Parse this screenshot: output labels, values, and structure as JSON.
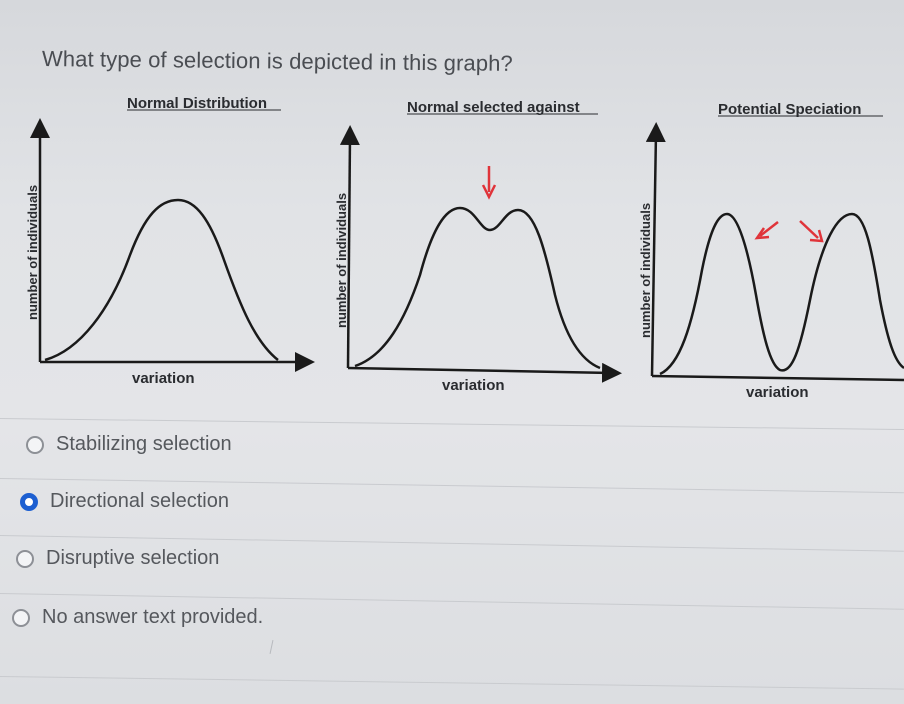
{
  "question": {
    "text": "What type of selection is depicted in this graph?"
  },
  "figure": {
    "panels": [
      {
        "title": "Normal Distribution",
        "ylabel": "number of individuals",
        "xlabel": "variation"
      },
      {
        "title": "Normal selected against",
        "ylabel": "number of individuals",
        "xlabel": "variation"
      },
      {
        "title": "Potential Speciation",
        "ylabel": "number of individuals",
        "xlabel": "variation"
      }
    ],
    "colors": {
      "curve": "#1a1a1a",
      "arrow": "#e0343a"
    }
  },
  "options": [
    {
      "label": "Stabilizing selection",
      "selected": false
    },
    {
      "label": "Directional selection",
      "selected": true
    },
    {
      "label": "Disruptive selection",
      "selected": false
    },
    {
      "label": "No answer text provided.",
      "selected": false
    }
  ]
}
